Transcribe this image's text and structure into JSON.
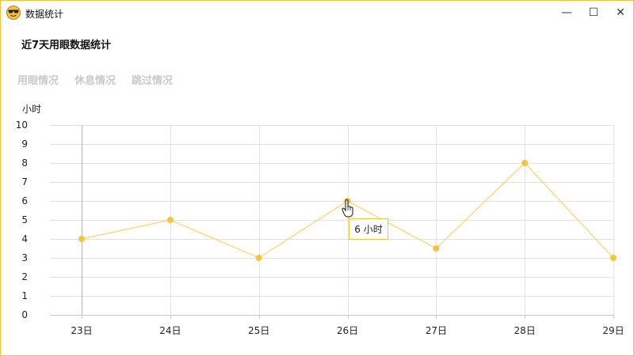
{
  "window": {
    "title": "数据统计",
    "icon": "sunglasses-face-icon",
    "controls": {
      "minimize": "—",
      "maximize": "☐",
      "close": "✕"
    }
  },
  "page": {
    "title": "近7天用眼数据统计"
  },
  "tabs": [
    {
      "label": "用眼情况",
      "active": true
    },
    {
      "label": "休息情况",
      "active": false
    },
    {
      "label": "跳过情况",
      "active": false
    }
  ],
  "chart": {
    "unit_label": "小时"
  },
  "tooltip": {
    "text": "6 小时"
  },
  "colors": {
    "accent": "#f6c33d",
    "line": "#f7d46a",
    "grid": "#e3e3e3",
    "tab_inactive": "#c9c9c9"
  },
  "chart_data": {
    "type": "line",
    "categories": [
      "23日",
      "24日",
      "25日",
      "26日",
      "27日",
      "28日",
      "29日"
    ],
    "series": [
      {
        "values": [
          4,
          5,
          3,
          6,
          3.5,
          8,
          3
        ]
      }
    ],
    "ylabel": "小时",
    "ylim": [
      0,
      10
    ],
    "yticks": [
      0,
      1,
      2,
      3,
      4,
      5,
      6,
      7,
      8,
      9,
      10
    ],
    "grid": true,
    "legend": "none"
  }
}
